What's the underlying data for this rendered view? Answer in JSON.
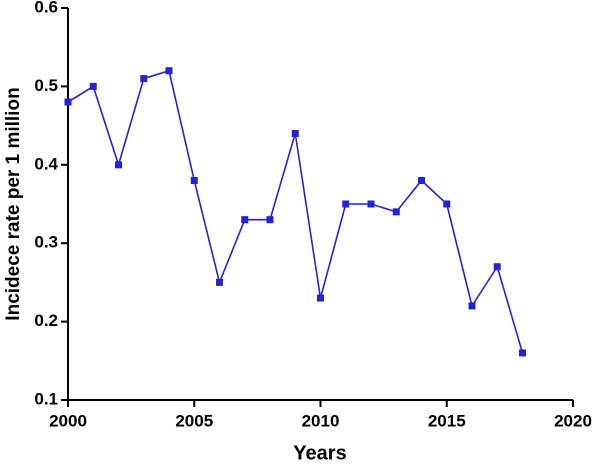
{
  "chart_data": {
    "type": "line",
    "x_label": "Years",
    "y_label": "Incidece rate per 1 million",
    "x": [
      2000,
      2001,
      2002,
      2003,
      2004,
      2005,
      2006,
      2007,
      2008,
      2009,
      2010,
      2011,
      2012,
      2013,
      2014,
      2015,
      2016,
      2017,
      2018
    ],
    "series": [
      {
        "color": "#2222d6",
        "values": [
          0.48,
          0.5,
          0.4,
          0.51,
          0.52,
          0.38,
          0.25,
          0.33,
          0.33,
          0.44,
          0.23,
          0.35,
          0.35,
          0.34,
          0.38,
          0.35,
          0.22,
          0.27,
          0.16
        ]
      }
    ],
    "xlim": [
      2000,
      2020
    ],
    "xticks": [
      2000,
      2005,
      2010,
      2015,
      2020
    ],
    "ylim": [
      0.1,
      0.6
    ],
    "yticks": [
      0.1,
      0.2,
      0.3,
      0.4,
      0.5,
      0.6
    ],
    "grid": false
  }
}
